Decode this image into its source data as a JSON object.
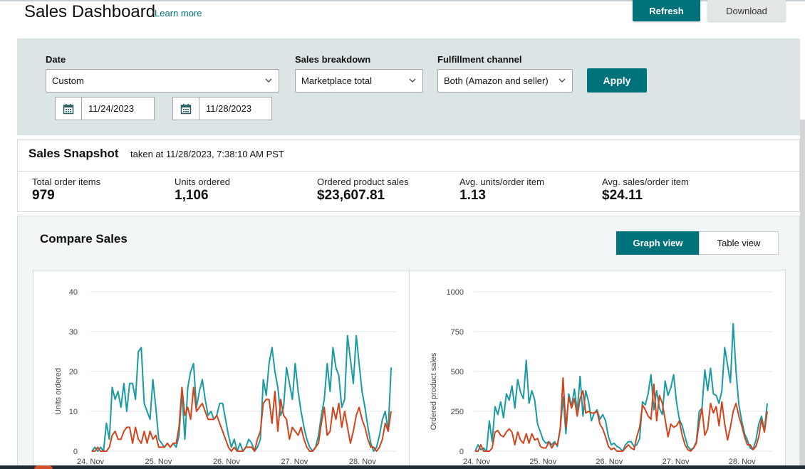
{
  "header": {
    "title": "Sales Dashboard",
    "learn_more": "Learn more",
    "refresh_label": "Refresh",
    "download_label": "Download"
  },
  "filters": {
    "date_label": "Date",
    "date_value": "Custom",
    "start_date": "11/24/2023",
    "end_date": "11/28/2023",
    "breakdown_label": "Sales breakdown",
    "breakdown_value": "Marketplace total",
    "channel_label": "Fulfillment channel",
    "channel_value": "Both (Amazon and seller)",
    "apply_label": "Apply"
  },
  "snapshot": {
    "title": "Sales Snapshot",
    "taken": "taken at 11/28/2023, 7:38:10 AM PST",
    "metrics": [
      {
        "label": "Total order items",
        "value": "979"
      },
      {
        "label": "Units ordered",
        "value": "1,106"
      },
      {
        "label": "Ordered product sales",
        "value": "$23,607.81"
      },
      {
        "label": "Avg. units/order item",
        "value": "1.13"
      },
      {
        "label": "Avg. sales/order item",
        "value": "$24.11"
      }
    ]
  },
  "compare": {
    "title": "Compare Sales",
    "graph_view": "Graph view",
    "table_view": "Table view"
  },
  "colors": {
    "accent": "#00727a",
    "series_teal": "#1a9ba2",
    "series_red": "#d4441c"
  },
  "chart_data": [
    {
      "type": "line",
      "ylabel": "Units ordered",
      "ylim": [
        0,
        40
      ],
      "yticks": [
        "0",
        "10",
        "20",
        "30",
        "40"
      ],
      "xticks": [
        "24. Nov",
        "25. Nov",
        "26. Nov",
        "27. Nov",
        "28. Nov"
      ],
      "grid": true,
      "series": [
        {
          "color": "#1a9ba2",
          "values": [
            0,
            1,
            0,
            1,
            0,
            7,
            3,
            16,
            13,
            15,
            11,
            17,
            10,
            17,
            17,
            13,
            25,
            26,
            12,
            10,
            8,
            18,
            11,
            3,
            2,
            1,
            2,
            1,
            2,
            1,
            4,
            15,
            3,
            16,
            20,
            22,
            11,
            15,
            18,
            13,
            9,
            10,
            8,
            9,
            12,
            12,
            8,
            4,
            1,
            3,
            0,
            2,
            0,
            1,
            3,
            2,
            0,
            1,
            3,
            18,
            14,
            22,
            26,
            20,
            16,
            9,
            11,
            21,
            17,
            13,
            22,
            15,
            10,
            6,
            3,
            1,
            0,
            1,
            4,
            9,
            13,
            22,
            15,
            26,
            21,
            19,
            11,
            13,
            29,
            23,
            17,
            29,
            22,
            15,
            11,
            6,
            2,
            0,
            1,
            4,
            8,
            10,
            5,
            21
          ]
        },
        {
          "color": "#d4441c",
          "values": [
            0,
            0,
            1,
            0,
            0,
            0,
            1,
            4,
            5,
            3,
            3,
            5,
            6,
            6,
            2,
            6,
            3,
            2,
            5,
            2,
            5,
            3,
            4,
            1,
            1,
            1,
            2,
            1,
            2,
            2,
            6,
            16,
            9,
            11,
            8,
            16,
            10,
            11,
            12,
            10,
            8,
            8,
            8,
            9,
            7,
            5,
            3,
            1,
            0,
            1,
            0,
            0,
            0,
            1,
            1,
            1,
            0,
            3,
            5,
            12,
            13,
            13,
            7,
            15,
            5,
            13,
            9,
            8,
            3,
            6,
            5,
            4,
            6,
            3,
            1,
            0,
            0,
            1,
            2,
            7,
            11,
            4,
            5,
            11,
            8,
            12,
            6,
            10,
            6,
            2,
            5,
            9,
            11,
            8,
            6,
            3,
            1,
            1,
            0,
            1,
            3,
            7,
            5,
            10
          ]
        }
      ]
    },
    {
      "type": "line",
      "ylabel": "Ordered product sales",
      "ylim": [
        0,
        1000
      ],
      "yticks": [
        "0",
        "250",
        "500",
        "750",
        "1000"
      ],
      "xticks": [
        "24. Nov",
        "25. Nov",
        "26. Nov",
        "27. Nov",
        "28. Nov"
      ],
      "grid": true,
      "series": [
        {
          "color": "#1a9ba2",
          "values": [
            0,
            40,
            10,
            20,
            0,
            190,
            60,
            280,
            230,
            310,
            210,
            360,
            320,
            410,
            270,
            450,
            370,
            330,
            570,
            300,
            380,
            320,
            170,
            120,
            70,
            50,
            60,
            40,
            60,
            30,
            140,
            340,
            110,
            360,
            280,
            390,
            250,
            470,
            220,
            380,
            310,
            190,
            240,
            260,
            200,
            230,
            190,
            90,
            40,
            50,
            30,
            20,
            0,
            40,
            60,
            60,
            30,
            40,
            80,
            310,
            290,
            360,
            480,
            260,
            380,
            270,
            230,
            440,
            350,
            400,
            480,
            310,
            200,
            160,
            90,
            30,
            10,
            20,
            60,
            250,
            270,
            510,
            380,
            520,
            360,
            350,
            300,
            380,
            650,
            540,
            430,
            800,
            500,
            290,
            190,
            110,
            70,
            20,
            10,
            70,
            170,
            220,
            130,
            300
          ]
        },
        {
          "color": "#d4441c",
          "values": [
            0,
            0,
            40,
            0,
            0,
            0,
            20,
            120,
            130,
            100,
            90,
            120,
            140,
            120,
            40,
            120,
            70,
            50,
            110,
            50,
            110,
            70,
            80,
            30,
            20,
            20,
            60,
            20,
            50,
            40,
            140,
            460,
            150,
            340,
            270,
            330,
            220,
            330,
            380,
            240,
            250,
            240,
            240,
            250,
            170,
            140,
            90,
            30,
            10,
            20,
            0,
            0,
            0,
            20,
            40,
            20,
            10,
            90,
            150,
            290,
            260,
            220,
            200,
            420,
            190,
            350,
            300,
            200,
            90,
            170,
            150,
            160,
            190,
            100,
            40,
            10,
            0,
            20,
            50,
            180,
            270,
            100,
            140,
            300,
            240,
            280,
            160,
            310,
            170,
            70,
            150,
            250,
            300,
            220,
            160,
            90,
            40,
            40,
            10,
            30,
            90,
            200,
            120,
            250
          ]
        }
      ]
    }
  ]
}
